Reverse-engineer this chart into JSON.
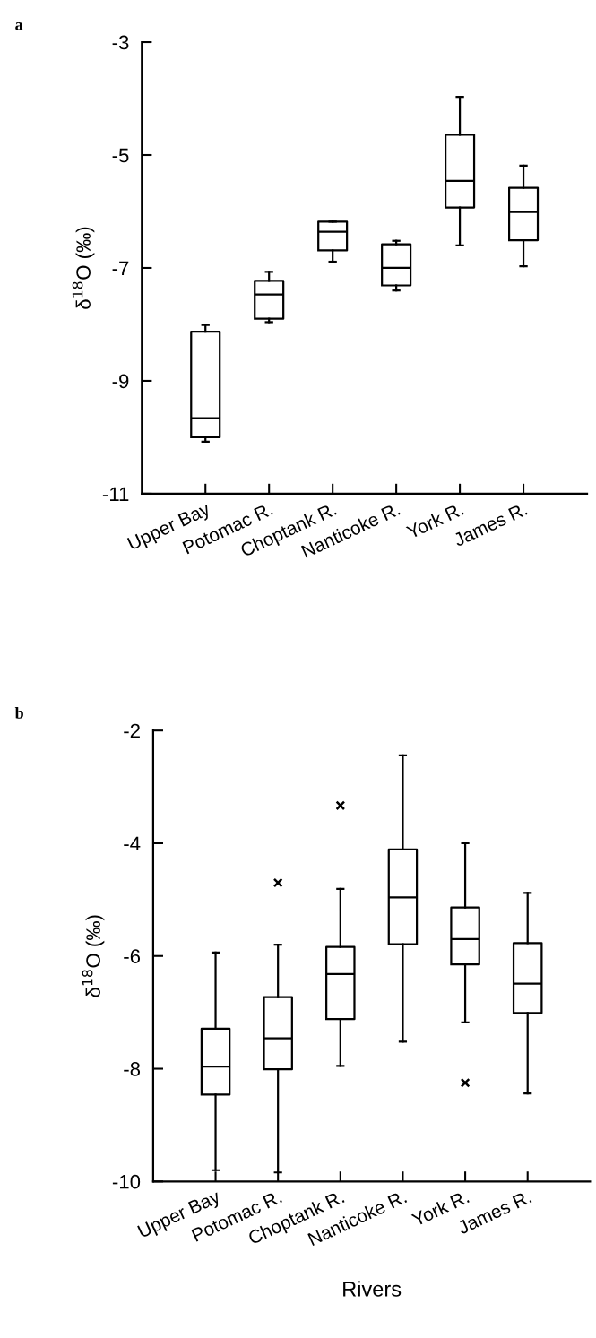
{
  "chart_data": [
    {
      "type": "box",
      "title": "a",
      "ylabel": "δ$^{18}$O (‰)",
      "categories": [
        "Upper Bay",
        "Potomac R.",
        "Choptank R.",
        "Nanticoke R.",
        "York R.",
        "James R."
      ],
      "ylim": [
        -11,
        -3
      ],
      "yticks": [
        -11,
        -9,
        -7,
        -5,
        -3
      ],
      "grid": false,
      "color": "#000000",
      "boxes": [
        {
          "low": -10.08,
          "q1": -10.0,
          "median": -9.66,
          "q3": -8.13,
          "high": -8.01
        },
        {
          "low": -7.96,
          "q1": -7.9,
          "median": -7.47,
          "q3": -7.23,
          "high": -7.07
        },
        {
          "low": -6.89,
          "q1": -6.69,
          "median": -6.36,
          "q3": -6.18,
          "high": -6.18
        },
        {
          "low": -7.4,
          "q1": -7.31,
          "median": -7.0,
          "q3": -6.58,
          "high": -6.52
        },
        {
          "low": -6.6,
          "q1": -5.93,
          "median": -5.46,
          "q3": -4.64,
          "high": -3.97
        },
        {
          "low": -6.97,
          "q1": -6.51,
          "median": -6.01,
          "q3": -5.58,
          "high": -5.19
        }
      ]
    },
    {
      "type": "box",
      "title": "b",
      "ylabel": "δ$^{18}$O (‰)",
      "xlabel": "Rivers",
      "categories": [
        "Upper Bay",
        "Potomac R.",
        "Choptank R.",
        "Nanticoke R.",
        "York R.",
        "James R."
      ],
      "ylim": [
        -10,
        -2
      ],
      "yticks": [
        -10,
        -8,
        -6,
        -4,
        -2
      ],
      "grid": false,
      "color": "#000000",
      "marker": "cross",
      "boxes": [
        {
          "low": -9.8,
          "q1": -8.46,
          "median": -7.96,
          "q3": -7.29,
          "high": -5.94
        },
        {
          "low": -9.84,
          "q1": -8.01,
          "median": -7.46,
          "q3": -6.73,
          "high": -5.8,
          "outliers": [
            -4.7
          ]
        },
        {
          "low": -7.95,
          "q1": -7.12,
          "median": -6.32,
          "q3": -5.84,
          "high": -4.81,
          "outliers": [
            -3.33
          ]
        },
        {
          "low": -7.52,
          "q1": -5.79,
          "median": -4.96,
          "q3": -4.11,
          "high": -2.44
        },
        {
          "low": -7.18,
          "q1": -6.15,
          "median": -5.7,
          "q3": -5.14,
          "high": -4.0,
          "outliers": [
            -8.25
          ]
        },
        {
          "low": -8.44,
          "q1": -7.01,
          "median": -6.49,
          "q3": -5.77,
          "high": -4.88
        }
      ]
    }
  ]
}
